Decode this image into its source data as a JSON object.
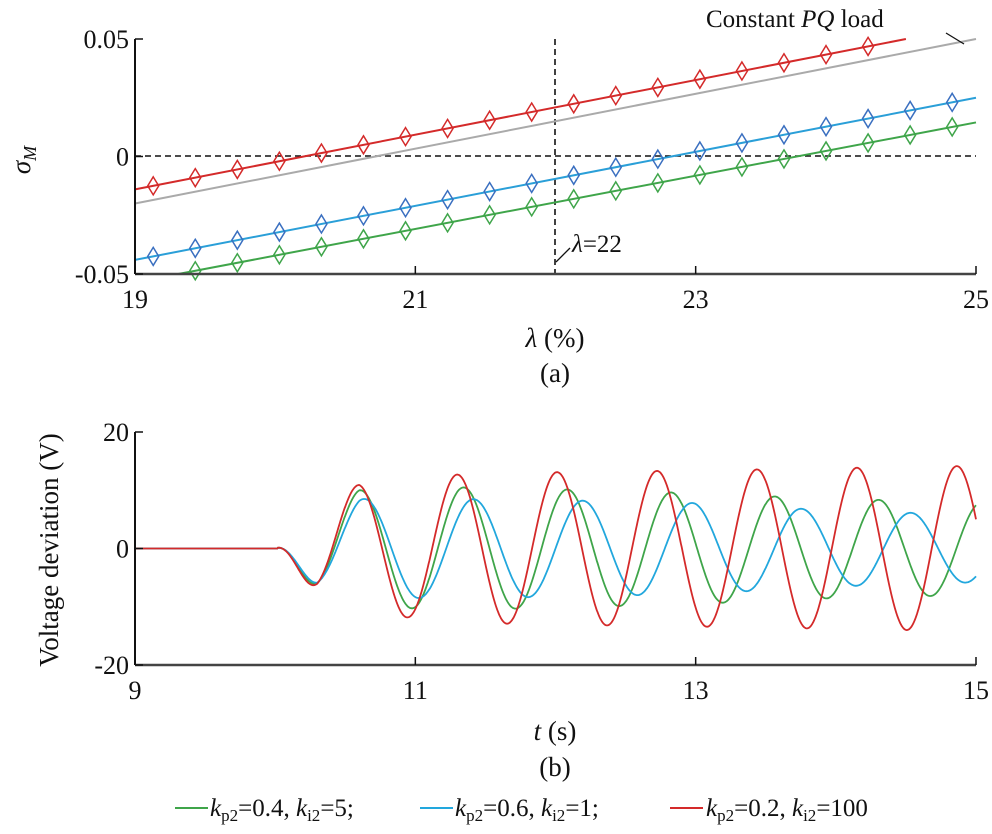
{
  "chart_data": [
    {
      "id": "a",
      "type": "line",
      "panel_label": "(a)",
      "xlabel_var": "λ",
      "xlabel_unit": " (%)",
      "ylabel_var": "σ",
      "ylabel_sub": "M",
      "xlim": [
        19,
        25
      ],
      "ylim": [
        -0.05,
        0.05
      ],
      "xticks": [
        19,
        21,
        23,
        25
      ],
      "xtick_labels": [
        "19",
        "21",
        "23",
        "25"
      ],
      "yticks": [
        0.05,
        0,
        -0.05
      ],
      "ytick_labels": [
        "0.05",
        "0",
        "-0.05"
      ],
      "reference_lines": {
        "y": 0,
        "x": 22
      },
      "annotations": {
        "vline_label_var": "λ",
        "vline_label_value": "=22",
        "pq_label_prefix": "Constant ",
        "pq_label_italic": "PQ",
        "pq_label_suffix": " load"
      },
      "series": [
        {
          "name": "Constant PQ load",
          "color": "#aaaaaa",
          "x": [
            19,
            25
          ],
          "y": [
            -0.02,
            0.05
          ],
          "markers": false
        },
        {
          "name": "kp2=0.2, ki2=100",
          "color": "#d42a2a",
          "x": [
            19,
            24.5
          ],
          "y": [
            -0.014,
            0.05
          ],
          "markers": true,
          "marker_x": [
            19.13,
            19.43,
            19.73,
            20.03,
            20.33,
            20.63,
            20.93,
            21.23,
            21.53,
            21.83,
            22.13,
            22.43,
            22.73,
            23.03,
            23.33,
            23.63,
            23.93,
            24.23
          ]
        },
        {
          "name": "kp2=0.6, ki2=1",
          "color": "#2a9fd8",
          "marker_color": "#3a6fc0",
          "x": [
            19,
            25
          ],
          "y": [
            -0.044,
            0.025
          ],
          "markers": true,
          "marker_x": [
            19.13,
            19.43,
            19.73,
            20.03,
            20.33,
            20.63,
            20.93,
            21.23,
            21.53,
            21.83,
            22.13,
            22.43,
            22.73,
            23.03,
            23.33,
            23.63,
            23.93,
            24.23,
            24.53,
            24.83
          ]
        },
        {
          "name": "kp2=0.4, ki2=5",
          "color": "#3fa54a",
          "x": [
            19,
            25
          ],
          "y": [
            -0.0535,
            0.0145
          ],
          "markers": true,
          "marker_x": [
            19.43,
            19.73,
            20.03,
            20.33,
            20.63,
            20.93,
            21.23,
            21.53,
            21.83,
            22.13,
            22.43,
            22.73,
            23.03,
            23.33,
            23.63,
            23.93,
            24.23,
            24.53,
            24.83
          ]
        }
      ]
    },
    {
      "id": "b",
      "type": "line",
      "panel_label": "(b)",
      "xlabel_var": "t",
      "xlabel_unit": " (s)",
      "ylabel": "Voltage deviation (V)",
      "xlim": [
        9,
        15
      ],
      "ylim": [
        -20,
        20
      ],
      "xticks": [
        9,
        11,
        13,
        15
      ],
      "xtick_labels": [
        "9",
        "11",
        "13",
        "15"
      ],
      "yticks": [
        20,
        0,
        -20
      ],
      "ytick_labels": [
        "20",
        "0",
        "-20"
      ],
      "disturbance_time": 10.02,
      "series": [
        {
          "name": "kp2=0.4, ki2=5",
          "color": "#3fa54a",
          "period": 0.74,
          "envelope_t": [
            10.0,
            10.3,
            10.6,
            11.3,
            12.0,
            13.0,
            14.0,
            15.0
          ],
          "envelope_amp": [
            0,
            7,
            10,
            10.5,
            10.2,
            9.5,
            8.5,
            8.0
          ]
        },
        {
          "name": "kp2=0.6, ki2=1",
          "color": "#22a7dd",
          "period": 0.78,
          "envelope_t": [
            10.0,
            10.3,
            10.6,
            11.3,
            12.0,
            13.0,
            14.0,
            15.0
          ],
          "envelope_amp": [
            0,
            6.5,
            8.5,
            8.5,
            8.3,
            7.8,
            6.5,
            5.8
          ]
        },
        {
          "name": "kp2=0.2, ki2=100",
          "color": "#d42a2a",
          "period": 0.713,
          "envelope_t": [
            10.0,
            10.3,
            10.6,
            11.3,
            12.0,
            13.0,
            14.0,
            15.0
          ],
          "envelope_amp": [
            0,
            7.5,
            11,
            12.7,
            13.1,
            13.4,
            13.8,
            14.2
          ]
        }
      ]
    }
  ],
  "legend": {
    "placement": "bottom",
    "items": [
      {
        "k": "k",
        "p_sub": "p2",
        "p_val": "=0.4, ",
        "i_sub": "i2",
        "i_val": "=5;",
        "color": "#3fa54a"
      },
      {
        "k": "k",
        "p_sub": "p2",
        "p_val": "=0.6, ",
        "i_sub": "i2",
        "i_val": "=1;",
        "color": "#22a7dd"
      },
      {
        "k": "k",
        "p_sub": "p2",
        "p_val": "=0.2, ",
        "i_sub": "i2",
        "i_val": "=100",
        "color": "#d42a2a"
      }
    ]
  }
}
